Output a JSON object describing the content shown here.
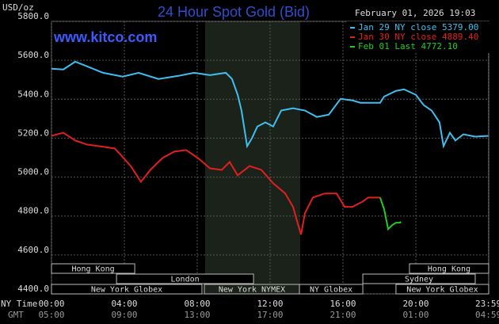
{
  "chart_data": {
    "type": "line",
    "title": "24 Hour Spot Gold (Bid)",
    "watermark": "www.kitco.com",
    "timestamp": "February 01, 2026 19:03",
    "ylabel": "USD/oz",
    "xlabel": "NY Time",
    "xlabel_secondary": "GMT",
    "xlim": [
      0,
      24
    ],
    "ylim": [
      4400,
      5800
    ],
    "xticks": [
      {
        "value": 0,
        "label": "00:00"
      },
      {
        "value": 4,
        "label": "04:00"
      },
      {
        "value": 8,
        "label": "08:00"
      },
      {
        "value": 12,
        "label": "12:00"
      },
      {
        "value": 16,
        "label": "16:00"
      },
      {
        "value": 20,
        "label": "20:00"
      },
      {
        "value": 23.98,
        "label": "23:59"
      }
    ],
    "xticks_secondary": [
      "05:00",
      "09:00",
      "13:00",
      "17:00",
      "21:00",
      "01:00",
      "04:59"
    ],
    "yticks": [
      {
        "value": 4400,
        "label": "4400.0"
      },
      {
        "value": 4600,
        "label": "4600.0"
      },
      {
        "value": 4800,
        "label": "4800.0"
      },
      {
        "value": 5000,
        "label": "5000.0"
      },
      {
        "value": 5200,
        "label": "5200.0"
      },
      {
        "value": 5400,
        "label": "5400.0"
      },
      {
        "value": 5600,
        "label": "5600.0"
      },
      {
        "value": 5800,
        "label": "5800.0"
      }
    ],
    "grid": true,
    "highlight": [
      8.43,
      13.65
    ],
    "sessions": [
      {
        "name": "Hong Kong",
        "start": 0,
        "end": 4.57,
        "row": 0
      },
      {
        "name": "Hong Kong",
        "start": 19.65,
        "end": 24,
        "row": 0
      },
      {
        "name": "London",
        "start": 3.57,
        "end": 11.09,
        "row": 1
      },
      {
        "name": "Sydney",
        "start": 17.09,
        "end": 23.26,
        "row": 1
      },
      {
        "name": "New York Globex",
        "start": 0,
        "end": 8.26,
        "row": 2
      },
      {
        "name": "New York NYMEX",
        "start": 8.39,
        "end": 13.61,
        "row": 2
      },
      {
        "name": "NY Globex",
        "start": 13.61,
        "end": 17.09,
        "row": 2
      },
      {
        "name": "New York Globex",
        "start": 18.91,
        "end": 24,
        "row": 2
      }
    ],
    "series": [
      {
        "name": "Jan 29 NY close 5379.00",
        "color": "#3fbfef",
        "x": [
          0,
          0.65,
          1.3,
          1.96,
          2.83,
          3.91,
          4.78,
          5.87,
          6.96,
          7.83,
          8.7,
          9.57,
          9.91,
          10.22,
          10.43,
          10.74,
          11,
          11.3,
          11.74,
          12.17,
          12.61,
          13.26,
          13.91,
          14.57,
          15.22,
          15.87,
          16.52,
          16.96,
          18.04,
          18.26,
          18.91,
          19.35,
          20,
          20.43,
          20.87,
          21.3,
          21.52,
          21.87,
          22.17,
          22.61,
          23.26,
          23.98
        ],
        "values": [
          5557,
          5553,
          5593,
          5569,
          5536,
          5516,
          5536,
          5504,
          5520,
          5536,
          5524,
          5536,
          5504,
          5423,
          5342,
          5159,
          5199,
          5260,
          5281,
          5260,
          5342,
          5354,
          5342,
          5309,
          5321,
          5402,
          5394,
          5382,
          5382,
          5414,
          5443,
          5451,
          5423,
          5370,
          5342,
          5281,
          5159,
          5228,
          5188,
          5220,
          5208,
          5212
        ]
      },
      {
        "name": "Jan 30 NY close 4889.40",
        "color": "#e02020",
        "x": [
          0,
          0.65,
          1.3,
          1.96,
          2.61,
          3.48,
          4.35,
          4.91,
          5.43,
          6.09,
          6.74,
          7.39,
          8.04,
          8.7,
          9.35,
          9.78,
          10.22,
          10.87,
          11.52,
          12.17,
          12.83,
          13.26,
          13.48,
          13.7,
          13.91,
          14.35,
          15,
          15.65,
          16.09,
          16.52,
          17.09,
          17.39,
          18.04
        ],
        "values": [
          5212,
          5228,
          5188,
          5167,
          5159,
          5147,
          5057,
          4976,
          5037,
          5098,
          5131,
          5139,
          5098,
          5045,
          5037,
          5078,
          5009,
          5057,
          5037,
          4968,
          4916,
          4847,
          4774,
          4705,
          4814,
          4895,
          4916,
          4916,
          4847,
          4847,
          4875,
          4895,
          4895
        ]
      },
      {
        "name": "Feb 01 Last 4772.10",
        "color": "#22cc22",
        "x": [
          18.04,
          18.26,
          18.48,
          18.7,
          18.91,
          19.13,
          19.17
        ],
        "values": [
          4895,
          4835,
          4733,
          4753,
          4766,
          4766,
          4772
        ]
      }
    ]
  }
}
